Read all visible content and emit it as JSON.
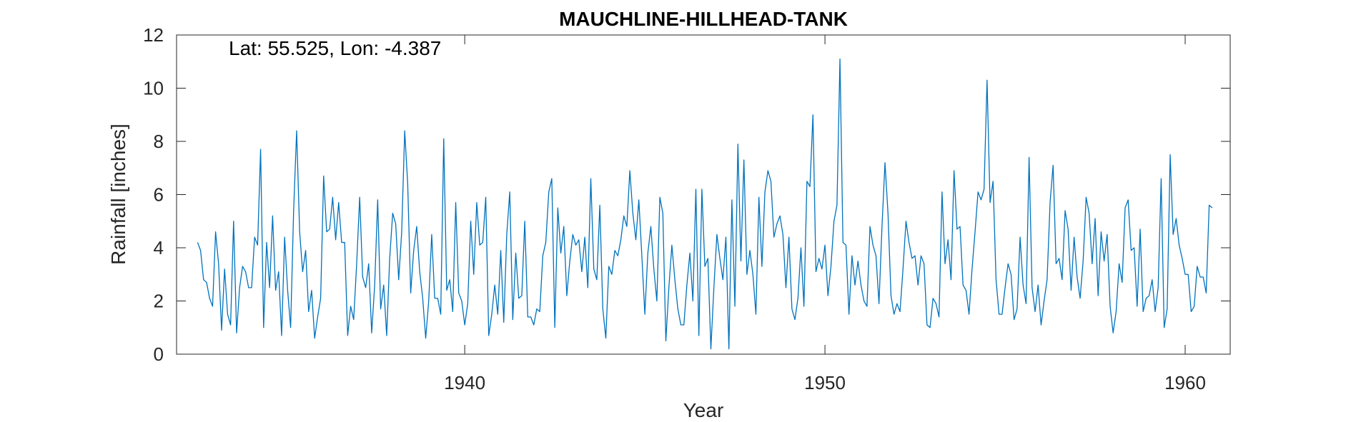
{
  "chart_data": {
    "type": "line",
    "title": "MAUCHLINE-HILLHEAD-TANK",
    "xlabel": "Year",
    "ylabel": "Rainfall [inches]",
    "annotation": "Lat: 55.525, Lon: -4.387",
    "xlim": [
      1932.0,
      1961.25
    ],
    "ylim": [
      0,
      12
    ],
    "xticks": [
      1940,
      1950,
      1960
    ],
    "yticks": [
      0,
      2,
      4,
      6,
      8,
      10,
      12
    ],
    "grid": false,
    "line_color": "#0072BD",
    "series": [
      {
        "x_start": "1932-08",
        "frequency": "monthly",
        "values": [
          4.2,
          3.9,
          2.8,
          2.7,
          2.1,
          1.8,
          4.6,
          3.4,
          0.9,
          3.2,
          1.5,
          1.1,
          5.0,
          0.8,
          2.5,
          3.3,
          3.1,
          2.5,
          2.5,
          4.4,
          4.1,
          7.7,
          1.0,
          4.2,
          2.5,
          5.2,
          2.4,
          3.1,
          0.7,
          4.4,
          2.4,
          1.0,
          5.4,
          8.4,
          4.6,
          3.1,
          3.9,
          1.6,
          2.4,
          0.6,
          1.4,
          2.1,
          6.7,
          4.6,
          4.7,
          5.9,
          4.3,
          5.7,
          4.2,
          4.2,
          0.7,
          1.8,
          1.3,
          3.4,
          5.9,
          2.9,
          2.5,
          3.4,
          0.8,
          2.6,
          5.8,
          1.7,
          2.6,
          0.7,
          3.6,
          5.3,
          4.9,
          2.8,
          4.6,
          8.4,
          6.4,
          2.3,
          3.9,
          4.8,
          3.1,
          2.1,
          0.6,
          2.0,
          4.5,
          2.1,
          2.1,
          1.5,
          8.1,
          2.4,
          2.8,
          1.6,
          5.7,
          2.3,
          2.0,
          1.1,
          1.9,
          5.0,
          3.0,
          5.7,
          4.1,
          4.2,
          5.9,
          0.7,
          1.5,
          2.6,
          1.5,
          3.9,
          1.2,
          4.5,
          6.1,
          1.3,
          3.8,
          2.1,
          2.2,
          5.0,
          1.4,
          1.4,
          1.1,
          1.7,
          1.6,
          3.7,
          4.2,
          6.1,
          6.6,
          1.0,
          5.5,
          3.8,
          4.8,
          2.2,
          3.5,
          4.5,
          4.1,
          4.3,
          3.1,
          4.4,
          2.5,
          6.6,
          3.2,
          2.8,
          5.6,
          1.7,
          0.6,
          3.3,
          3.0,
          3.9,
          3.7,
          4.3,
          5.2,
          4.8,
          6.9,
          5.3,
          4.3,
          5.8,
          3.7,
          1.5,
          3.8,
          4.8,
          3.2,
          2.0,
          5.9,
          5.3,
          0.5,
          2.5,
          4.1,
          2.8,
          1.7,
          1.1,
          1.1,
          2.6,
          3.8,
          2.0,
          6.2,
          0.7,
          6.2,
          3.3,
          3.6,
          0.2,
          2.5,
          4.5,
          3.6,
          2.8,
          4.4,
          0.2,
          5.8,
          1.8,
          7.9,
          3.5,
          7.3,
          3.0,
          3.9,
          3.0,
          1.5,
          5.9,
          3.3,
          6.1,
          6.9,
          6.5,
          4.4,
          4.9,
          5.2,
          4.5,
          2.5,
          4.4,
          1.7,
          1.3,
          2.1,
          4.0,
          1.8,
          6.5,
          6.3,
          9.0,
          3.1,
          3.6,
          3.2,
          4.1,
          2.2,
          3.3,
          5.0,
          5.6,
          11.1,
          4.2,
          4.1,
          1.5,
          3.7,
          2.6,
          3.5,
          2.6,
          2.0,
          1.8,
          4.8,
          4.1,
          3.7,
          1.9,
          4.8,
          7.2,
          5.3,
          2.2,
          1.5,
          1.9,
          1.6,
          3.2,
          5.0,
          4.2,
          3.6,
          3.7,
          2.6,
          3.7,
          3.4,
          1.1,
          1.0,
          2.1,
          1.9,
          1.4,
          6.1,
          3.4,
          4.3,
          2.8,
          6.9,
          4.7,
          4.8,
          2.6,
          2.4,
          1.5,
          3.2,
          4.6,
          6.1,
          5.8,
          6.2,
          10.3,
          5.7,
          6.5,
          2.8,
          1.5,
          1.5,
          2.5,
          3.4,
          3.0,
          1.3,
          1.7,
          4.4,
          2.6,
          1.9,
          7.4,
          2.5,
          1.6,
          2.6,
          1.1,
          2.0,
          2.8,
          5.7,
          7.1,
          3.4,
          3.6,
          2.8,
          5.4,
          4.7,
          2.4,
          4.4,
          2.9,
          2.1,
          3.5,
          5.9,
          5.3,
          3.4,
          5.1,
          2.2,
          4.6,
          3.5,
          4.5,
          1.8,
          0.8,
          1.6,
          3.4,
          2.7,
          5.5,
          5.8,
          3.9,
          4.0,
          1.8,
          4.7,
          1.6,
          2.1,
          2.2,
          2.8,
          1.6,
          2.5,
          6.6,
          1.0,
          1.7,
          7.5,
          4.5,
          5.1,
          4.1,
          3.6,
          3.0,
          3.0,
          1.6,
          1.8,
          3.3,
          2.9,
          2.9,
          2.3,
          5.6,
          5.5
        ]
      }
    ]
  }
}
